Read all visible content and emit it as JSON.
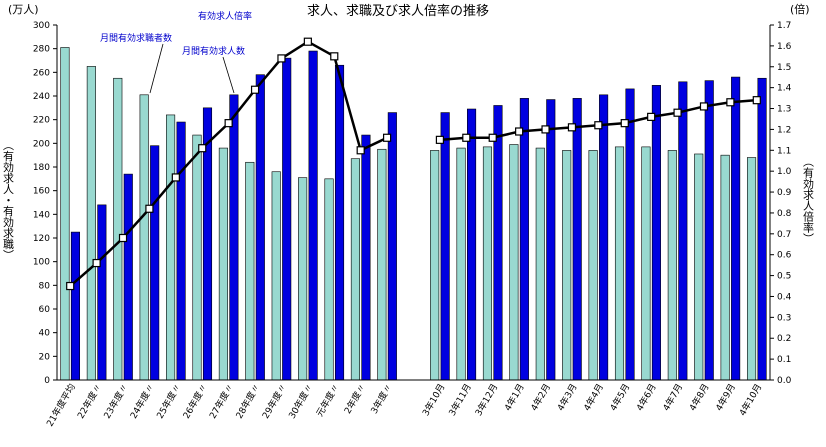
{
  "chart_data": {
    "type": "bar",
    "title": "求人、求職及び求人倍率の推移",
    "left_unit": "(万人)",
    "right_unit": "(倍)",
    "left_axis_label": "（有効求人・有効求職）",
    "right_axis_label": "（有効求人倍率）",
    "ylim_left": [
      0,
      300
    ],
    "ylim_right": [
      0.0,
      1.7
    ],
    "left_ticks": [
      "0",
      "20",
      "40",
      "60",
      "80",
      "100",
      "120",
      "140",
      "160",
      "180",
      "200",
      "220",
      "240",
      "260",
      "280",
      "300"
    ],
    "right_ticks": [
      "0.0",
      "0.1",
      "0.2",
      "0.3",
      "0.4",
      "0.5",
      "0.6",
      "0.7",
      "0.8",
      "0.9",
      "1.0",
      "1.1",
      "1.2",
      "1.3",
      "1.4",
      "1.5",
      "1.6",
      "1.7"
    ],
    "categories": [
      "21年度平均",
      "22年度〃",
      "23年度〃",
      "24年度〃",
      "25年度〃",
      "26年度〃",
      "27年度〃",
      "28年度〃",
      "29年度〃",
      "30年度〃",
      "元年度〃",
      "2年度〃",
      "3年度〃",
      "",
      "3年10月",
      "3年11月",
      "3年12月",
      "4年1月",
      "4年2月",
      "4年3月",
      "4年4月",
      "4年5月",
      "4年6月",
      "4年7月",
      "4年8月",
      "4年9月",
      "4年10月"
    ],
    "series": [
      {
        "name": "月間有効求職者数",
        "type": "bar",
        "color": "#99d9d0",
        "values": [
          281,
          265,
          255,
          241,
          224,
          207,
          196,
          184,
          176,
          171,
          170,
          187,
          195,
          null,
          194,
          196,
          197,
          199,
          196,
          194,
          194,
          197,
          197,
          194,
          191,
          190,
          188
        ]
      },
      {
        "name": "月間有効求人数",
        "type": "bar",
        "color": "#0000e0",
        "values": [
          125,
          148,
          174,
          198,
          218,
          230,
          241,
          258,
          272,
          278,
          266,
          207,
          226,
          null,
          226,
          229,
          232,
          238,
          237,
          238,
          241,
          246,
          249,
          252,
          253,
          256,
          255
        ]
      },
      {
        "name": "有効求人倍率",
        "type": "line",
        "axis": "right",
        "color": "#000000",
        "values": [
          0.45,
          0.56,
          0.68,
          0.82,
          0.97,
          1.11,
          1.23,
          1.39,
          1.54,
          1.62,
          1.55,
          1.1,
          1.16,
          null,
          1.15,
          1.16,
          1.16,
          1.19,
          1.2,
          1.21,
          1.22,
          1.23,
          1.26,
          1.28,
          1.31,
          1.33,
          1.34
        ]
      }
    ],
    "annotations": [
      "有効求人倍率",
      "月間有効求職者数",
      "月間有効求人数"
    ],
    "grid": false,
    "legend": "none"
  }
}
